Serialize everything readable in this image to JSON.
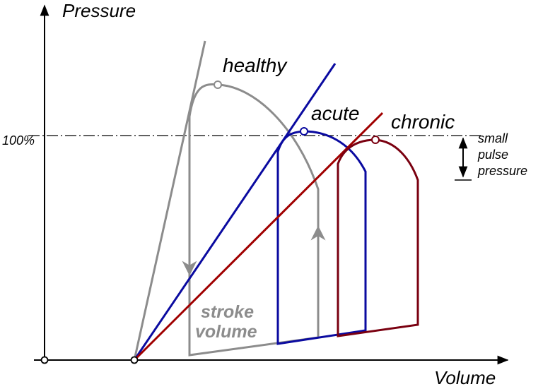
{
  "axes": {
    "y_label": "Pressure",
    "x_label": "Volume",
    "reference_label": "100%"
  },
  "loops": [
    {
      "label": "healthy"
    },
    {
      "label": "acute"
    },
    {
      "label": "chronic"
    }
  ],
  "annotations": {
    "pulse_pressure": [
      "small",
      "pulse",
      "pressure"
    ],
    "stroke_volume": [
      "stroke",
      "volume"
    ]
  }
}
